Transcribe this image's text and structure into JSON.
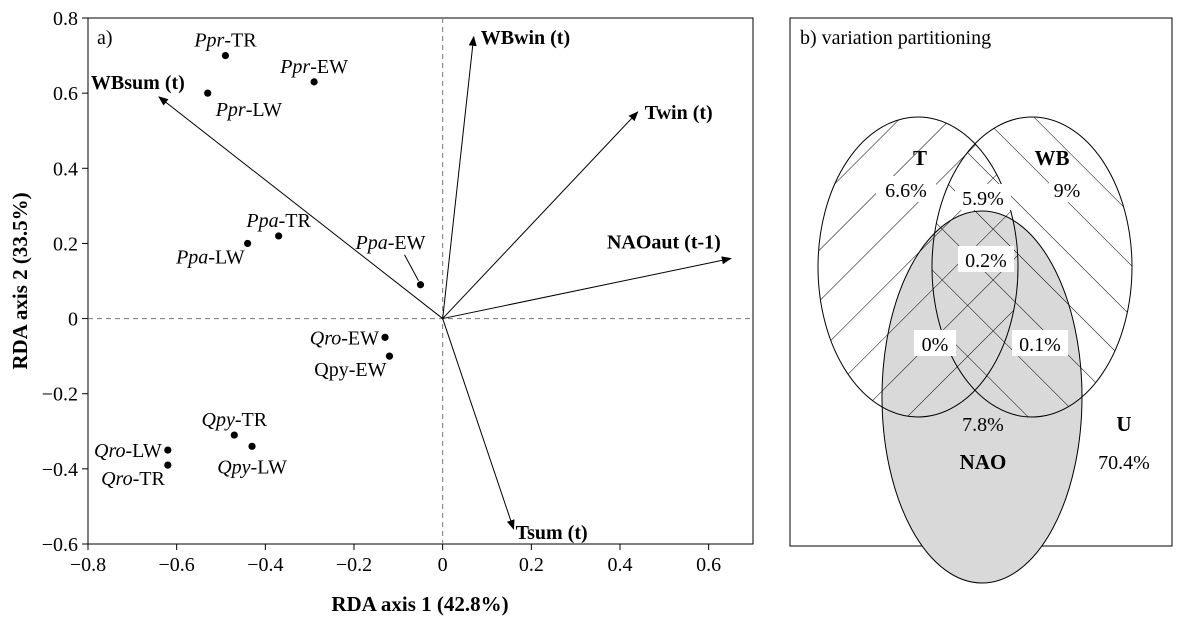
{
  "chart_data": [
    {
      "type": "scatter",
      "panel_label": "a)",
      "xlabel": "RDA axis 1 (42.8%)",
      "ylabel": "RDA axis 2 (33.5%)",
      "xlim": [
        -0.8,
        0.7
      ],
      "ylim": [
        -0.6,
        0.8
      ],
      "x_ticks": [
        "−0.8",
        "−0.6",
        "−0.4",
        "−0.2",
        "0",
        "0.2",
        "0.4",
        "0.6"
      ],
      "x_tick_values": [
        -0.8,
        -0.6,
        -0.4,
        -0.2,
        0,
        0.2,
        0.4,
        0.6
      ],
      "y_ticks": [
        "0.8",
        "0.6",
        "0.4",
        "0.2",
        "0",
        "−0.2",
        "−0.4",
        "−0.6"
      ],
      "y_tick_values": [
        0.8,
        0.6,
        0.4,
        0.2,
        0,
        -0.2,
        -0.4,
        -0.6
      ],
      "grid": false,
      "reference_lines": "dashed lines at x = 0 and y = 0",
      "points": [
        {
          "sp": "Ppr",
          "suffix": "-TR",
          "x": -0.49,
          "y": 0.7,
          "anchor": "above"
        },
        {
          "sp": "Ppr",
          "suffix": "-EW",
          "x": -0.29,
          "y": 0.63,
          "anchor": "above"
        },
        {
          "sp": "Ppr",
          "suffix": "-LW",
          "x": -0.53,
          "y": 0.6,
          "anchor": "below-right"
        },
        {
          "sp": "Ppa",
          "suffix": "-TR",
          "x": -0.37,
          "y": 0.22,
          "anchor": "above"
        },
        {
          "sp": "Ppa",
          "suffix": "-LW",
          "x": -0.44,
          "y": 0.2,
          "anchor": "below-left"
        },
        {
          "sp": "Ppa",
          "suffix": "-EW",
          "x": -0.05,
          "y": 0.09,
          "anchor": "above-left-leader"
        },
        {
          "sp": "Qro",
          "suffix": "-EW",
          "x": -0.13,
          "y": -0.05,
          "anchor": "left"
        },
        {
          "sp": "",
          "text": "Qpy-EW",
          "x": -0.12,
          "y": -0.1,
          "anchor": "below-left"
        },
        {
          "sp": "Qpy",
          "suffix": "-TR",
          "x": -0.47,
          "y": -0.31,
          "anchor": "above"
        },
        {
          "sp": "Qpy",
          "suffix": "-LW",
          "x": -0.43,
          "y": -0.34,
          "anchor": "below"
        },
        {
          "sp": "Qro",
          "suffix": "-LW",
          "x": -0.62,
          "y": -0.35,
          "anchor": "left"
        },
        {
          "sp": "Qro",
          "suffix": "-TR",
          "x": -0.62,
          "y": -0.39,
          "anchor": "below-left"
        }
      ],
      "vectors": [
        {
          "label": "WBwin (t)",
          "x": 0.07,
          "y": 0.75
        },
        {
          "label": "WBsum (t)",
          "x": -0.64,
          "y": 0.59
        },
        {
          "label": "Twin (t)",
          "x": 0.44,
          "y": 0.55
        },
        {
          "label": "NAOaut (t-1)",
          "x": 0.65,
          "y": 0.16
        },
        {
          "label": "Tsum (t)",
          "x": 0.16,
          "y": -0.56
        }
      ]
    },
    {
      "type": "venn",
      "title": "b) variation partitioning",
      "sets": [
        "T",
        "WB",
        "NAO"
      ],
      "regions": [
        {
          "region": "T only",
          "value": "6.6%"
        },
        {
          "region": "T∩WB",
          "value": "5.9%"
        },
        {
          "region": "WB only",
          "value": "9%"
        },
        {
          "region": "T∩WB∩NAO",
          "value": "0.2%"
        },
        {
          "region": "T∩NAO",
          "value": "0%"
        },
        {
          "region": "WB∩NAO",
          "value": "0.1%"
        },
        {
          "region": "NAO only",
          "value": "7.8%"
        },
        {
          "region": "U",
          "value": "70.4%"
        }
      ],
      "unexplained_label": "U",
      "colors": {
        "nao_fill": "#d9d9d9",
        "hatch": "#000000",
        "box": "#000000"
      }
    }
  ]
}
